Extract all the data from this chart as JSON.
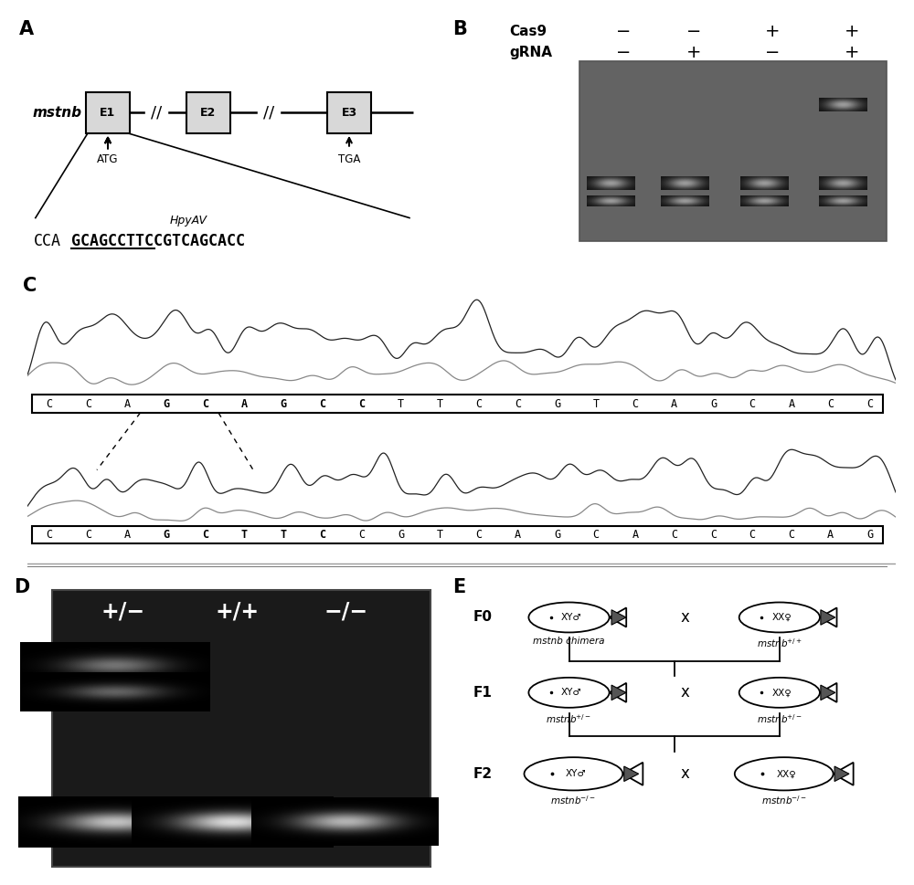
{
  "fig_width": 10.0,
  "fig_height": 9.69,
  "bg_color": "#ffffff",
  "exon_labels": [
    "E1",
    "E2",
    "E3"
  ],
  "atg_label": "ATG",
  "tga_label": "TGA",
  "hpyav_label": "HpyAV",
  "cas9_signs": [
    "−",
    "−",
    "+",
    "+"
  ],
  "grna_signs": [
    "−",
    "+",
    "−",
    "+"
  ],
  "top_seq": [
    "C",
    "C",
    "A",
    "G",
    "C",
    "A",
    "G",
    "C",
    "C",
    "T",
    "T",
    "C",
    "C",
    "G",
    "T",
    "C",
    "A",
    "G",
    "C",
    "A",
    "C",
    "C"
  ],
  "top_seq_bold": [
    3,
    4,
    5,
    6,
    7,
    8
  ],
  "bot_seq": [
    "C",
    "C",
    "A",
    "G",
    "C",
    "T",
    "T",
    "C",
    "C",
    "G",
    "T",
    "C",
    "A",
    "G",
    "C",
    "A",
    "C",
    "C",
    "C",
    "C",
    "A",
    "G"
  ],
  "bot_seq_bold": [
    3,
    4,
    5,
    6,
    7
  ],
  "genotype_labels": [
    "+/−",
    "+/+",
    "−/−"
  ],
  "gel_bg_dark": "#2a2a2a",
  "gel_bg_mid": "#4a4a4a",
  "band_color_bright": "#d0d0d0",
  "band_color_mid": "#a8a8a8"
}
